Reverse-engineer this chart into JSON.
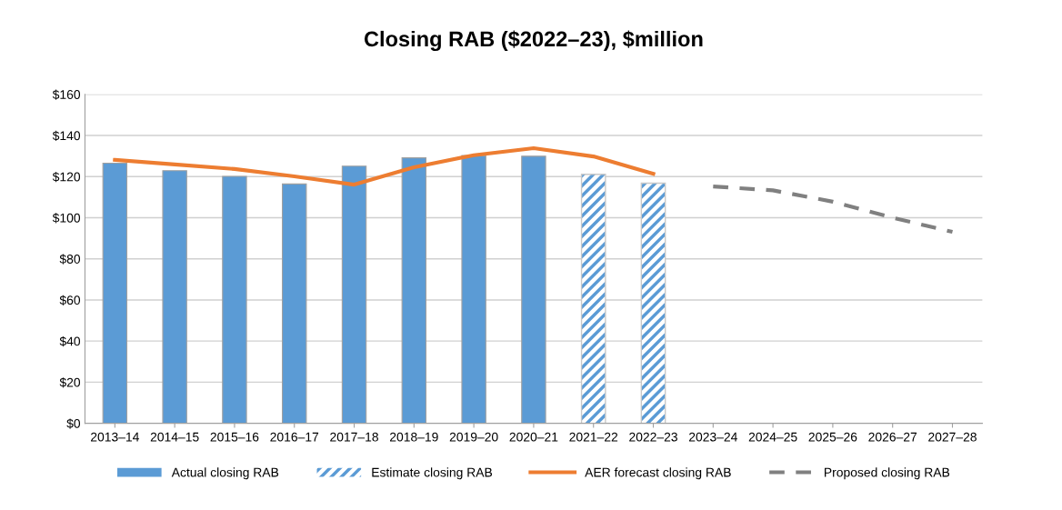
{
  "chart_data": {
    "type": "bar",
    "title": "Closing RAB ($2022–23), $million",
    "categories": [
      "2013–14",
      "2014–15",
      "2015–16",
      "2016–17",
      "2017–18",
      "2018–19",
      "2019–20",
      "2020–21",
      "2021–22",
      "2022–23",
      "2023–24",
      "2024–25",
      "2025–26",
      "2026–27",
      "2027–28"
    ],
    "series": [
      {
        "name": "Actual closing RAB",
        "color": "#5b9bd5",
        "values": [
          126.5,
          122.9,
          120.1,
          116.4,
          125.1,
          129.1,
          130.2,
          129.9,
          null,
          null,
          null,
          null,
          null,
          null,
          null
        ]
      },
      {
        "name": "Estimate closing RAB",
        "color": "#5b9bd5",
        "values": [
          null,
          null,
          null,
          null,
          null,
          null,
          null,
          null,
          121.1,
          116.8,
          null,
          null,
          null,
          null,
          null
        ]
      },
      {
        "name": "AER forecast closing RAB",
        "type": "line",
        "color": "#ed7d31",
        "line_style": "solid",
        "values": [
          128.1,
          125.9,
          123.7,
          120.1,
          116.1,
          124.5,
          130.4,
          133.8,
          129.8,
          121.4,
          null,
          null,
          null,
          null,
          null
        ]
      },
      {
        "name": "Proposed closing RAB",
        "type": "line",
        "color": "#808080",
        "line_style": "dashed",
        "values": [
          null,
          null,
          null,
          null,
          null,
          null,
          null,
          null,
          null,
          null,
          115.2,
          113.3,
          107.8,
          100.0,
          93.1
        ]
      }
    ],
    "ylim": [
      0,
      160
    ],
    "yticks": [
      {
        "value": 0,
        "label": "$0"
      },
      {
        "value": 20,
        "label": "$20"
      },
      {
        "value": 40,
        "label": "$40"
      },
      {
        "value": 60,
        "label": "$60"
      },
      {
        "value": 80,
        "label": "$80"
      },
      {
        "value": 100,
        "label": "$100"
      },
      {
        "value": 120,
        "label": "$120"
      },
      {
        "value": 140,
        "label": "$140"
      },
      {
        "value": 160,
        "label": "$160"
      }
    ],
    "grid": "y",
    "legend": "bottom"
  }
}
